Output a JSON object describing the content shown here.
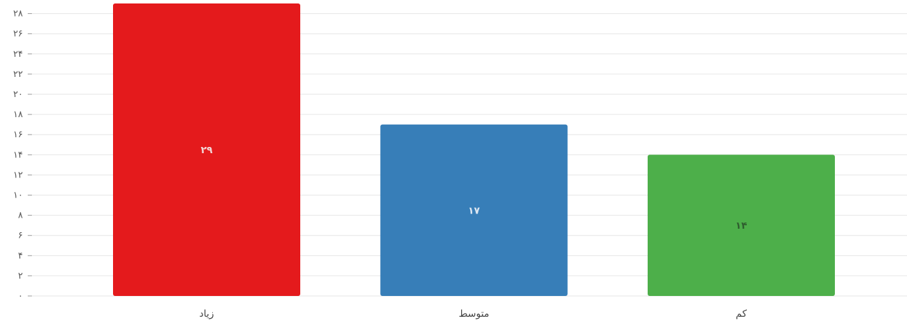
{
  "chart_data": {
    "type": "bar",
    "categories": [
      "زیاد",
      "متوسط",
      "کم"
    ],
    "values": [
      29,
      17,
      14
    ],
    "value_labels": [
      "۲۹",
      "۱۷",
      "۱۴"
    ],
    "colors": [
      "#e41a1c",
      "#377eb8",
      "#4daf4a"
    ],
    "value_label_colors": [
      "#f3d7d7",
      "#dde7f2",
      "#2f5f2f"
    ],
    "yticks": [
      0,
      2,
      4,
      6,
      8,
      10,
      12,
      14,
      16,
      18,
      20,
      22,
      24,
      26,
      28
    ],
    "ytick_labels": [
      "۰",
      "۲",
      "۴",
      "۶",
      "۸",
      "۱۰",
      "۱۲",
      "۱۴",
      "۱۶",
      "۱۸",
      "۲۰",
      "۲۲",
      "۲۴",
      "۲۶",
      "۲۸"
    ],
    "ylim": [
      0,
      29
    ],
    "grid": true,
    "legend": "none",
    "title": "",
    "xlabel": "",
    "ylabel": ""
  }
}
